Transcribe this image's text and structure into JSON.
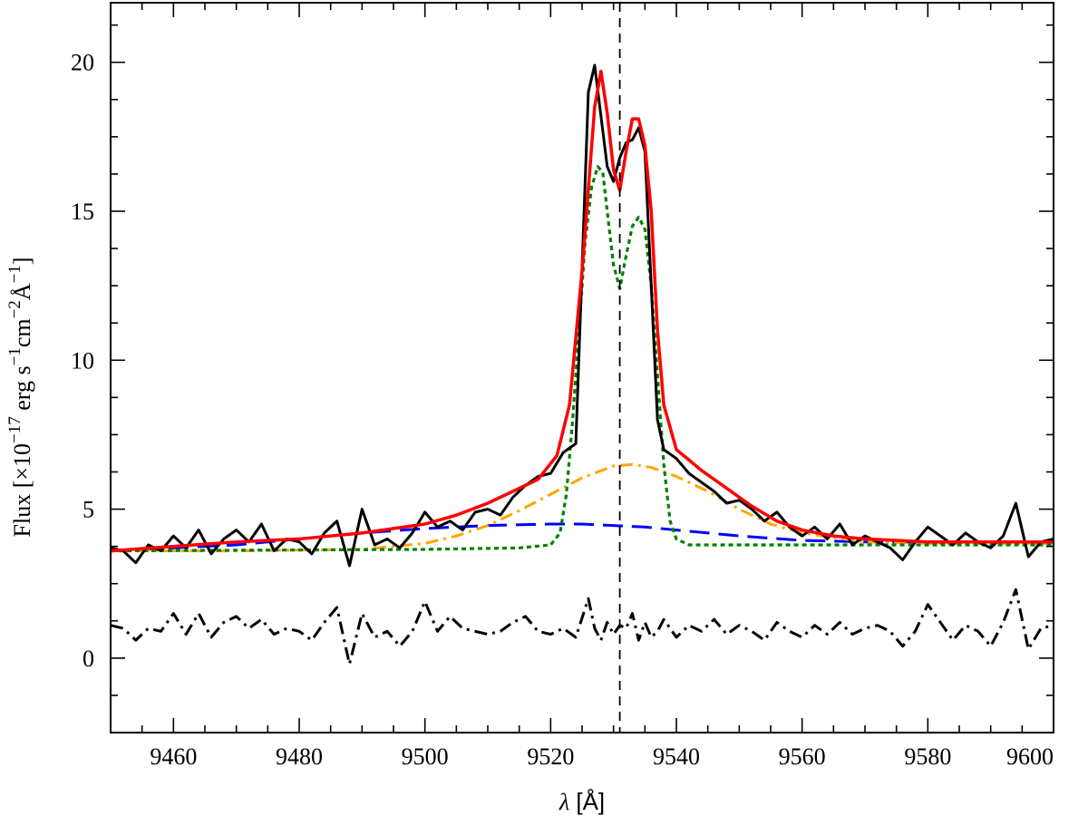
{
  "chart_data": {
    "type": "line",
    "xlabel_symbol": "λ",
    "xlabel_unit": " [Å]",
    "ylabel_parts": {
      "pre": "Flux [×10",
      "e1": "−17",
      "mid1": " erg s",
      "e2": "−1",
      "mid2": "cm",
      "e3": "−2",
      "mid3": "Å",
      "e4": "−1",
      "post": "]"
    },
    "xlim": [
      9450,
      9600
    ],
    "ylim": [
      -2.5,
      22
    ],
    "x_ticks": [
      9460,
      9480,
      9500,
      9520,
      9540,
      9560,
      9580,
      9600
    ],
    "x_tick_labels": [
      "9460",
      "9480",
      "9500",
      "9520",
      "9540",
      "9560",
      "9580",
      "9600"
    ],
    "x_minor_step": 5,
    "y_ticks": [
      0,
      5,
      10,
      15,
      20
    ],
    "y_tick_labels": [
      "0",
      "5",
      "10",
      "15",
      "20"
    ],
    "y_minor_step": 1.25,
    "reference_line_x": 9531,
    "grid": false,
    "legend": "none",
    "series": [
      {
        "role": "observed",
        "color": "#000000",
        "style": "solid",
        "width": 3,
        "x": [
          9450,
          9452,
          9454,
          9456,
          9458,
          9460,
          9462,
          9464,
          9466,
          9468,
          9470,
          9472,
          9474,
          9476,
          9478,
          9480,
          9482,
          9484,
          9486,
          9488,
          9490,
          9492,
          9494,
          9496,
          9498,
          9500,
          9502,
          9504,
          9506,
          9508,
          9510,
          9512,
          9514,
          9516,
          9518,
          9520,
          9522,
          9524,
          9526,
          9527,
          9528,
          9529,
          9530,
          9531,
          9532,
          9533,
          9534,
          9535,
          9536,
          9537,
          9538,
          9540,
          9542,
          9544,
          9546,
          9548,
          9550,
          9552,
          9554,
          9556,
          9558,
          9560,
          9562,
          9564,
          9566,
          9568,
          9570,
          9572,
          9574,
          9576,
          9578,
          9580,
          9582,
          9584,
          9586,
          9588,
          9590,
          9592,
          9594,
          9596,
          9598,
          9600
        ],
        "y": [
          3.7,
          3.6,
          3.2,
          3.8,
          3.6,
          4.1,
          3.7,
          4.3,
          3.5,
          4.0,
          4.3,
          3.9,
          4.5,
          3.6,
          4.0,
          3.9,
          3.5,
          4.2,
          4.6,
          3.1,
          5.0,
          3.8,
          4.0,
          3.7,
          4.2,
          4.9,
          4.4,
          4.6,
          4.3,
          4.9,
          5.0,
          4.8,
          5.4,
          5.8,
          6.1,
          6.2,
          6.9,
          7.2,
          19.0,
          19.9,
          18.2,
          16.5,
          16.0,
          16.8,
          17.3,
          17.4,
          17.8,
          17.0,
          12.5,
          8.0,
          7.0,
          6.7,
          6.2,
          5.9,
          5.6,
          5.2,
          5.3,
          5.0,
          4.6,
          4.9,
          4.4,
          4.1,
          4.4,
          4.0,
          4.5,
          3.8,
          4.1,
          3.9,
          3.7,
          3.3,
          3.9,
          4.4,
          4.1,
          3.8,
          4.2,
          3.9,
          3.7,
          4.1,
          5.2,
          3.4,
          3.9,
          4.0
        ]
      },
      {
        "role": "total fit",
        "color": "#ff0000",
        "style": "solid",
        "width": 3.5,
        "x": [
          9450,
          9460,
          9470,
          9480,
          9490,
          9500,
          9505,
          9510,
          9514,
          9518,
          9521,
          9523,
          9525,
          9527,
          9528,
          9529,
          9530,
          9531,
          9532,
          9533,
          9534,
          9535,
          9536,
          9537,
          9538,
          9540,
          9544,
          9548,
          9552,
          9556,
          9560,
          9565,
          9570,
          9580,
          9590,
          9600
        ],
        "y": [
          3.6,
          3.75,
          3.9,
          4.0,
          4.2,
          4.5,
          4.8,
          5.2,
          5.6,
          6.0,
          6.8,
          8.5,
          13.0,
          18.5,
          19.7,
          18.3,
          16.4,
          15.7,
          17.0,
          18.1,
          18.1,
          17.2,
          15.0,
          11.0,
          8.5,
          7.0,
          6.3,
          5.7,
          5.1,
          4.6,
          4.3,
          4.1,
          4.0,
          3.9,
          3.9,
          3.9
        ]
      },
      {
        "role": "broad component",
        "color": "#0000ff",
        "style": "dashed",
        "width": 3,
        "x": [
          9450,
          9470,
          9490,
          9500,
          9510,
          9520,
          9525,
          9530,
          9535,
          9540,
          9550,
          9560,
          9570,
          9580,
          9600
        ],
        "y": [
          3.6,
          3.8,
          4.2,
          4.35,
          4.45,
          4.5,
          4.5,
          4.45,
          4.4,
          4.3,
          4.1,
          3.95,
          3.9,
          3.9,
          3.9
        ]
      },
      {
        "role": "intermediate component",
        "color": "#ffa500",
        "style": "dashdot",
        "width": 3,
        "x": [
          9450,
          9470,
          9490,
          9500,
          9505,
          9510,
          9515,
          9520,
          9525,
          9530,
          9533,
          9536,
          9540,
          9545,
          9550,
          9555,
          9560,
          9570,
          9580,
          9600
        ],
        "y": [
          3.6,
          3.6,
          3.65,
          3.85,
          4.1,
          4.45,
          4.95,
          5.5,
          6.05,
          6.45,
          6.5,
          6.4,
          6.1,
          5.6,
          5.0,
          4.5,
          4.2,
          3.9,
          3.85,
          3.85
        ]
      },
      {
        "role": "narrow components",
        "color": "#008000",
        "style": "dotted",
        "width": 3.2,
        "x": [
          9450,
          9500,
          9515,
          9520,
          9521.5,
          9522.5,
          9523.5,
          9524.5,
          9525.5,
          9526.5,
          9527.5,
          9528.3,
          9529,
          9530,
          9531,
          9532,
          9533,
          9534,
          9535,
          9536,
          9537,
          9538,
          9539,
          9540,
          9542,
          9550,
          9570,
          9600
        ],
        "y": [
          3.6,
          3.65,
          3.7,
          3.8,
          4.2,
          5.5,
          8.0,
          11.0,
          14.0,
          15.8,
          16.5,
          16.3,
          15.0,
          13.2,
          12.4,
          13.5,
          14.5,
          14.8,
          14.4,
          12.5,
          9.5,
          6.5,
          4.6,
          4.0,
          3.8,
          3.8,
          3.8,
          3.8
        ]
      },
      {
        "role": "residual",
        "color": "#000000",
        "style": "dashdot",
        "width": 3,
        "x": [
          9450,
          9452,
          9454,
          9456,
          9458,
          9460,
          9462,
          9464,
          9466,
          9468,
          9470,
          9472,
          9474,
          9476,
          9478,
          9480,
          9482,
          9484,
          9486,
          9488,
          9490,
          9492,
          9494,
          9496,
          9498,
          9500,
          9502,
          9504,
          9506,
          9508,
          9510,
          9512,
          9514,
          9516,
          9518,
          9520,
          9522,
          9524,
          9526,
          9527,
          9528,
          9529,
          9530,
          9531,
          9532,
          9533,
          9534,
          9535,
          9536,
          9537,
          9538,
          9540,
          9542,
          9544,
          9546,
          9548,
          9550,
          9552,
          9554,
          9556,
          9558,
          9560,
          9562,
          9564,
          9566,
          9568,
          9570,
          9572,
          9574,
          9576,
          9578,
          9580,
          9582,
          9584,
          9586,
          9588,
          9590,
          9592,
          9594,
          9596,
          9598,
          9600
        ],
        "y": [
          1.1,
          1.0,
          0.6,
          1.0,
          0.9,
          1.5,
          0.8,
          1.5,
          0.7,
          1.2,
          1.4,
          1.0,
          1.3,
          0.8,
          1.0,
          0.9,
          0.6,
          1.2,
          1.7,
          -0.2,
          1.5,
          0.7,
          0.9,
          0.4,
          0.9,
          1.9,
          0.9,
          1.4,
          1.0,
          0.9,
          0.8,
          0.9,
          1.2,
          1.4,
          0.9,
          0.8,
          1.0,
          0.7,
          2.0,
          1.0,
          0.6,
          1.2,
          0.8,
          1.1,
          1.0,
          1.5,
          0.6,
          1.2,
          0.7,
          0.9,
          1.3,
          0.7,
          1.1,
          0.9,
          1.3,
          0.8,
          1.1,
          0.9,
          0.6,
          1.2,
          0.9,
          0.7,
          1.1,
          0.8,
          1.2,
          0.8,
          1.0,
          1.1,
          0.9,
          0.4,
          0.9,
          1.8,
          1.2,
          0.6,
          1.1,
          0.9,
          0.4,
          1.2,
          2.3,
          0.3,
          1.0,
          1.1
        ]
      }
    ]
  }
}
